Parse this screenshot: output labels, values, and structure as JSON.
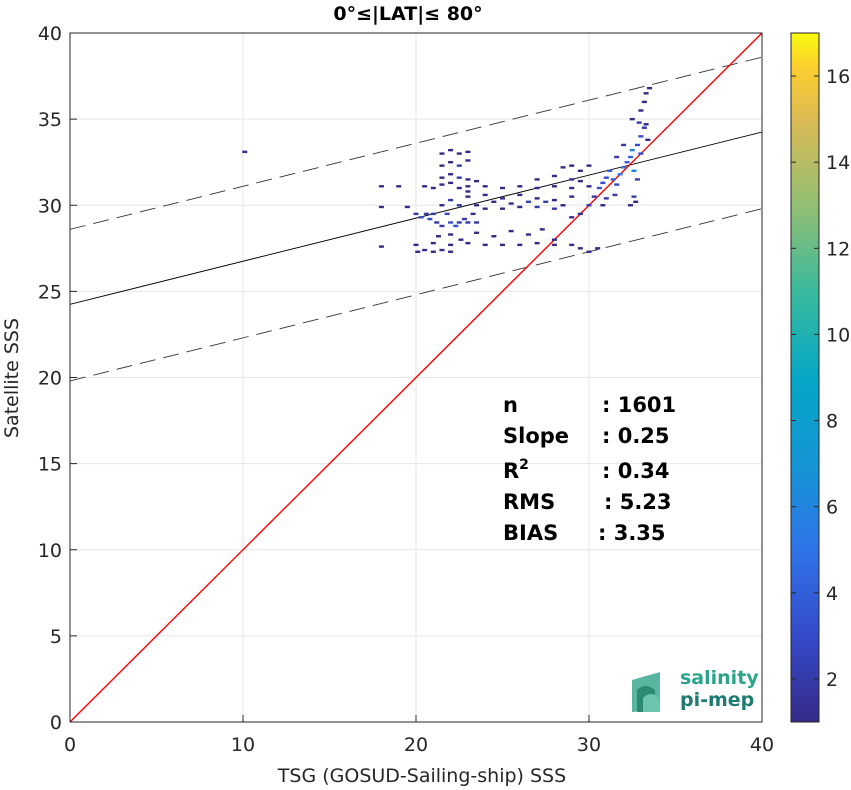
{
  "chart_data": {
    "type": "scatter",
    "title": "0°≤|LAT|≤ 80°",
    "xlabel": "TSG (GOSUD-Sailing-ship) SSS",
    "ylabel": "Satellite SSS",
    "xlim": [
      0,
      40
    ],
    "ylim": [
      0,
      40
    ],
    "xticks": [
      0,
      10,
      20,
      30,
      40
    ],
    "yticks": [
      0,
      5,
      10,
      15,
      20,
      25,
      30,
      35,
      40
    ],
    "grid": true,
    "colorbar": {
      "range": [
        1,
        17
      ],
      "ticks": [
        2,
        4,
        6,
        8,
        10,
        12,
        14,
        16
      ],
      "colormap": "parula"
    },
    "identity_line": {
      "color": "#ff0000",
      "from": [
        0,
        0
      ],
      "to": [
        40,
        40
      ]
    },
    "fit_line": {
      "color": "#000000",
      "intercept": 24.25,
      "slope": 0.25
    },
    "confidence_lines": [
      {
        "style": "dashed",
        "intercept": 28.6,
        "slope": 0.25
      },
      {
        "style": "dashed",
        "intercept": 19.8,
        "slope": 0.25
      }
    ],
    "stats": [
      {
        "label": "n",
        "value": ": 1601"
      },
      {
        "label": "Slope",
        "value": ": 0.25"
      },
      {
        "label": "R",
        "sup": "2",
        "value": ": 0.34"
      },
      {
        "label": "RMS",
        "value": ": 5.23"
      },
      {
        "label": "BIAS",
        "value": ": 3.35"
      }
    ],
    "points": [
      [
        10.1,
        33.1,
        1
      ],
      [
        18.0,
        31.1,
        1
      ],
      [
        18.0,
        29.9,
        1
      ],
      [
        18.0,
        27.6,
        1
      ],
      [
        19.0,
        31.1,
        1
      ],
      [
        19.5,
        29.9,
        1
      ],
      [
        20.0,
        29.5,
        2
      ],
      [
        20.3,
        29.3,
        3
      ],
      [
        20.6,
        29.5,
        2
      ],
      [
        20.8,
        29.2,
        3
      ],
      [
        21.0,
        29.5,
        2
      ],
      [
        21.2,
        29.0,
        2
      ],
      [
        21.5,
        28.8,
        2
      ],
      [
        21.8,
        29.5,
        3
      ],
      [
        22.0,
        29.0,
        3
      ],
      [
        22.3,
        28.8,
        3
      ],
      [
        22.5,
        29.0,
        2
      ],
      [
        22.8,
        29.2,
        2
      ],
      [
        23.0,
        29.0,
        2
      ],
      [
        23.3,
        29.5,
        1
      ],
      [
        23.5,
        29.0,
        2
      ],
      [
        20.1,
        27.3,
        1
      ],
      [
        20.5,
        27.4,
        1
      ],
      [
        21.0,
        27.3,
        1
      ],
      [
        21.5,
        27.4,
        1
      ],
      [
        22.0,
        27.3,
        1
      ],
      [
        20.0,
        27.7,
        1
      ],
      [
        21.0,
        27.8,
        1
      ],
      [
        22.0,
        27.7,
        1
      ],
      [
        23.0,
        27.8,
        1
      ],
      [
        24.0,
        27.7,
        1
      ],
      [
        25.0,
        27.7,
        1
      ],
      [
        26.0,
        27.7,
        1
      ],
      [
        27.0,
        27.8,
        1
      ],
      [
        28.0,
        27.7,
        1
      ],
      [
        29.0,
        27.7,
        1
      ],
      [
        29.5,
        27.5,
        1
      ],
      [
        30.0,
        27.3,
        1
      ],
      [
        30.5,
        27.5,
        1
      ],
      [
        21.3,
        28.2,
        1
      ],
      [
        22.0,
        28.3,
        1
      ],
      [
        22.6,
        28.0,
        1
      ],
      [
        23.5,
        28.4,
        1
      ],
      [
        24.5,
        28.2,
        1
      ],
      [
        25.5,
        28.5,
        1
      ],
      [
        26.5,
        28.3,
        1
      ],
      [
        27.3,
        28.6,
        1
      ],
      [
        28.0,
        28.0,
        1
      ],
      [
        21.5,
        30.0,
        1
      ],
      [
        22.0,
        30.3,
        2
      ],
      [
        22.5,
        30.0,
        2
      ],
      [
        23.0,
        30.5,
        1
      ],
      [
        23.5,
        30.0,
        1
      ],
      [
        24.0,
        29.8,
        1
      ],
      [
        24.5,
        30.2,
        1
      ],
      [
        25.0,
        29.8,
        1
      ],
      [
        25.5,
        30.1,
        1
      ],
      [
        26.0,
        29.9,
        1
      ],
      [
        26.5,
        30.2,
        2
      ],
      [
        27.0,
        29.9,
        2
      ],
      [
        27.5,
        30.2,
        2
      ],
      [
        28.0,
        29.8,
        2
      ],
      [
        28.5,
        30.0,
        1
      ],
      [
        20.5,
        31.1,
        1
      ],
      [
        21.0,
        31.0,
        1
      ],
      [
        21.5,
        31.2,
        1
      ],
      [
        22.0,
        31.3,
        1
      ],
      [
        22.5,
        31.0,
        1
      ],
      [
        23.0,
        31.1,
        1
      ],
      [
        24.0,
        31.1,
        1
      ],
      [
        25.0,
        31.0,
        1
      ],
      [
        26.0,
        31.1,
        1
      ],
      [
        27.0,
        31.0,
        1
      ],
      [
        28.0,
        31.1,
        1
      ],
      [
        29.0,
        31.0,
        1
      ],
      [
        30.0,
        31.1,
        1
      ],
      [
        21.5,
        31.6,
        1
      ],
      [
        22.0,
        31.8,
        1
      ],
      [
        22.5,
        31.6,
        2
      ],
      [
        23.0,
        31.5,
        1
      ],
      [
        23.5,
        31.4,
        1
      ],
      [
        27.0,
        31.5,
        1
      ],
      [
        28.0,
        31.7,
        1
      ],
      [
        29.0,
        31.5,
        1
      ],
      [
        29.5,
        31.4,
        1
      ],
      [
        21.5,
        32.3,
        1
      ],
      [
        22.0,
        32.5,
        1
      ],
      [
        22.5,
        32.3,
        2
      ],
      [
        23.0,
        32.6,
        1
      ],
      [
        21.5,
        33.0,
        1
      ],
      [
        22.0,
        33.2,
        1
      ],
      [
        22.5,
        33.0,
        1
      ],
      [
        23.0,
        33.1,
        1
      ],
      [
        23.0,
        30.8,
        1
      ],
      [
        24.0,
        30.6,
        1
      ],
      [
        25.0,
        30.4,
        1
      ],
      [
        26.0,
        30.6,
        1
      ],
      [
        27.0,
        30.4,
        1
      ],
      [
        28.0,
        30.3,
        1
      ],
      [
        29.0,
        30.5,
        1
      ],
      [
        29.0,
        29.3,
        1
      ],
      [
        29.5,
        29.5,
        1
      ],
      [
        30.0,
        30.0,
        2
      ],
      [
        30.3,
        30.5,
        2
      ],
      [
        28.5,
        32.2,
        1
      ],
      [
        29.0,
        32.3,
        1
      ],
      [
        29.5,
        32.0,
        1
      ],
      [
        30.0,
        32.3,
        1
      ],
      [
        30.6,
        31.0,
        3
      ],
      [
        30.8,
        31.3,
        3
      ],
      [
        31.0,
        31.6,
        3
      ],
      [
        31.2,
        32.0,
        4
      ],
      [
        31.4,
        31.5,
        4
      ],
      [
        31.6,
        31.2,
        3
      ],
      [
        31.8,
        31.8,
        5
      ],
      [
        32.0,
        32.2,
        5
      ],
      [
        32.2,
        32.5,
        4
      ],
      [
        32.4,
        32.8,
        4
      ],
      [
        32.5,
        33.2,
        6
      ],
      [
        32.6,
        32.0,
        6
      ],
      [
        32.8,
        33.5,
        3
      ],
      [
        33.0,
        34.0,
        3
      ],
      [
        33.2,
        34.5,
        2
      ],
      [
        33.3,
        34.7,
        1
      ],
      [
        33.0,
        33.0,
        3
      ],
      [
        32.8,
        31.5,
        2
      ],
      [
        32.6,
        30.5,
        2
      ],
      [
        32.4,
        30.0,
        1
      ],
      [
        31.5,
        30.6,
        2
      ],
      [
        31.0,
        30.4,
        2
      ],
      [
        30.8,
        30.0,
        1
      ],
      [
        31.6,
        32.8,
        2
      ],
      [
        32.0,
        33.5,
        2
      ],
      [
        32.5,
        35.0,
        1
      ],
      [
        33.0,
        35.5,
        1
      ],
      [
        33.2,
        36.0,
        1
      ],
      [
        33.3,
        36.5,
        1
      ],
      [
        33.5,
        36.8,
        1
      ],
      [
        32.9,
        34.8,
        2
      ],
      [
        33.4,
        33.8,
        1
      ],
      [
        32.7,
        30.2,
        1
      ]
    ]
  },
  "logo": {
    "line1": "salinity",
    "line2": "pi-mep"
  }
}
